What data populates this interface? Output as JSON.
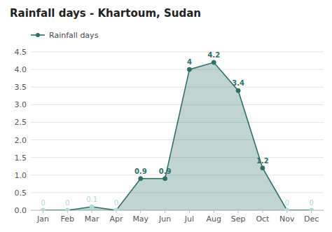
{
  "chart_data": {
    "type": "area",
    "title": "Rainfall days - Khartoum, Sudan",
    "categories": [
      "Jan",
      "Feb",
      "Mar",
      "Apr",
      "May",
      "Jun",
      "Jul",
      "Aug",
      "Sep",
      "Oct",
      "Nov",
      "Dec"
    ],
    "series": [
      {
        "name": "Rainfall days",
        "color": "#2d7068",
        "values": [
          0,
          0,
          0.1,
          0,
          0.9,
          0.9,
          4.0,
          4.2,
          3.4,
          1.2,
          0,
          0
        ],
        "colors": [
          "#aedbd6",
          "#aedbd6",
          "#aedbd6",
          "#aedbd6",
          "#2d7068",
          "#2d7068",
          "#2d7068",
          "#2d7068",
          "#2d7068",
          "#2d7068",
          "#aedbd6",
          "#aedbd6"
        ],
        "marker": "circle"
      }
    ],
    "ylim": [
      0,
      4.5
    ],
    "yticks": [
      {
        "value": 0.0,
        "label": "0.0"
      },
      0.5,
      {
        "value": 1.0,
        "label": "1.0"
      },
      1.5,
      {
        "value": 2.0,
        "label": "2.0"
      },
      2.5,
      {
        "value": 3.0,
        "label": "3.0"
      },
      3.5,
      {
        "value": 4.0,
        "label": "4.0"
      },
      4.5
    ],
    "grid": true,
    "legend": "upper left",
    "data_labels": true
  }
}
